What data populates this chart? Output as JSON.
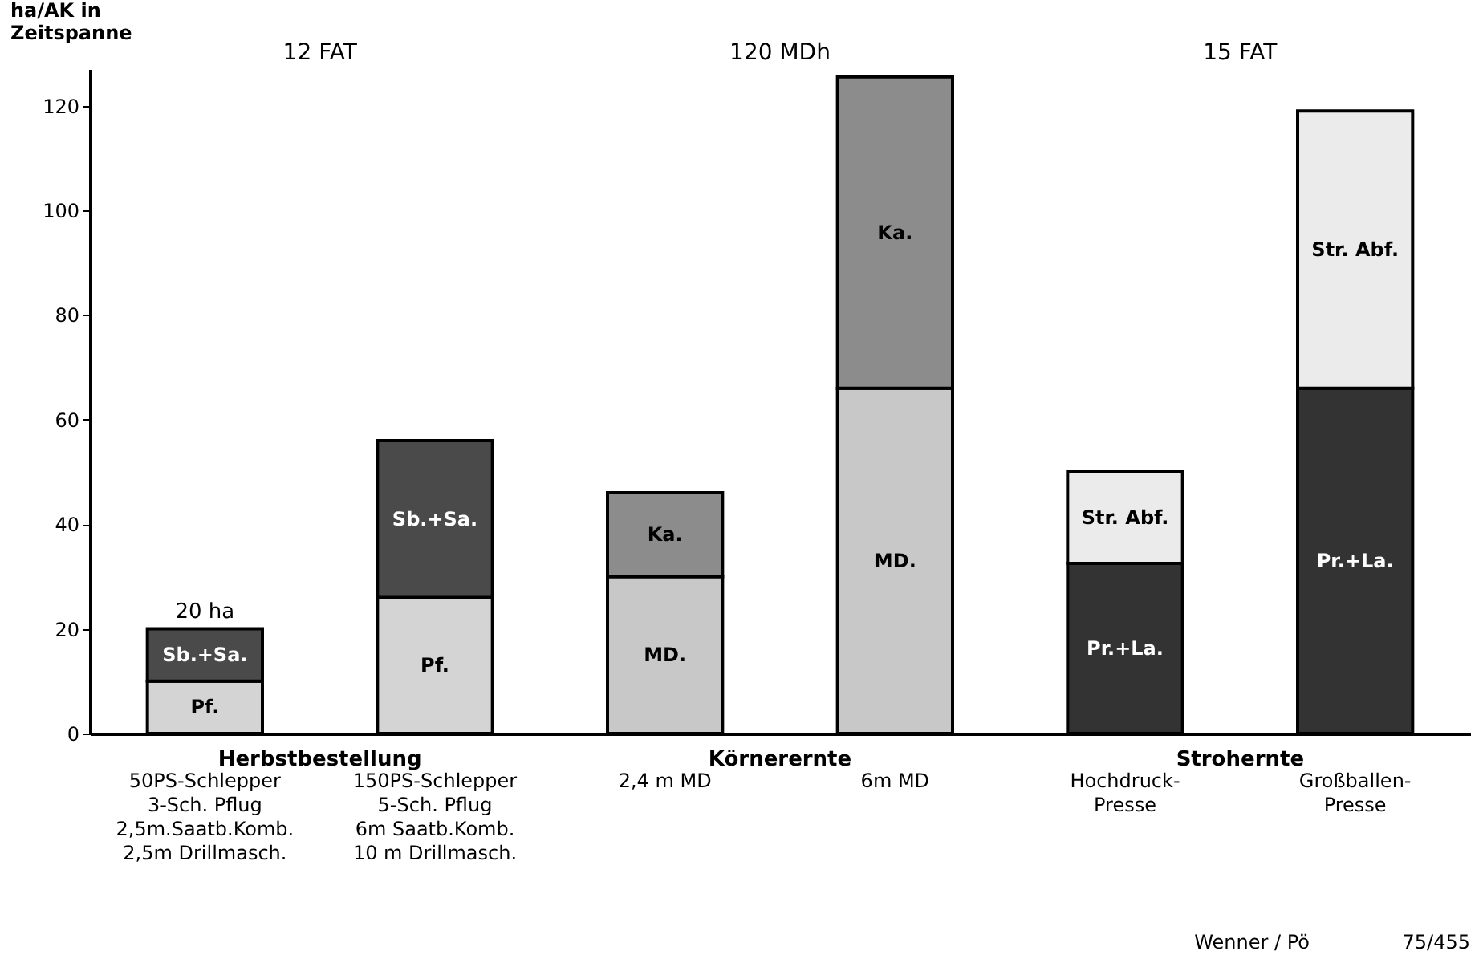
{
  "chart_data": {
    "type": "bar",
    "stacked": true,
    "ylabel": "ha/AK in\nZeitspanne",
    "categories": [
      "50PS-Schlepper\n3-Sch. Pflug\n2,5m.Saatb.Komb.\n2,5m Drillmasch.",
      "150PS-Schlepper\n5-Sch. Pflug\n6m Saatb.Komb.\n10 m Drillmasch.",
      "2,4 m MD",
      "6m MD",
      "Hochdruck-\nPresse",
      "Großballen-\nPresse"
    ],
    "series": [
      {
        "name": "Pf.",
        "color": "#d4d4d4",
        "values": [
          10,
          26,
          null,
          null,
          null,
          null
        ]
      },
      {
        "name": "Sb.+Sa.",
        "color": "#4a4a4a",
        "values": [
          10,
          30,
          null,
          null,
          null,
          null
        ]
      },
      {
        "name": "MD.",
        "color": "#c8c8c8",
        "values": [
          null,
          null,
          30,
          66,
          null,
          null
        ]
      },
      {
        "name": "Ka.",
        "color": "#8c8c8c",
        "values": [
          null,
          null,
          16,
          59.5,
          null,
          null
        ]
      },
      {
        "name": "Pr.+La.",
        "color": "#333333",
        "values": [
          null,
          null,
          null,
          null,
          32.5,
          66
        ]
      },
      {
        "name": "Str. Abf.",
        "color": "#ebebeb",
        "values": [
          null,
          null,
          null,
          null,
          17.5,
          53
        ]
      }
    ],
    "ylim": [
      0,
      127
    ],
    "yticks": [
      0,
      20,
      40,
      60,
      80,
      100,
      120
    ],
    "grid": false,
    "legend": false,
    "annotations": [
      "12 FAT",
      "120 MDh",
      "15 FAT",
      {
        "text": "20 ha",
        "x": "50PS-Schlepper\n3-Sch. Pflug\n2,5m.Saatb.Komb.\n2,5m Drillmasch.",
        "y": 20
      },
      "Herbstbestellung",
      "Körnerernte",
      "Strohernte",
      "Wenner / Pö",
      "75/455"
    ]
  }
}
